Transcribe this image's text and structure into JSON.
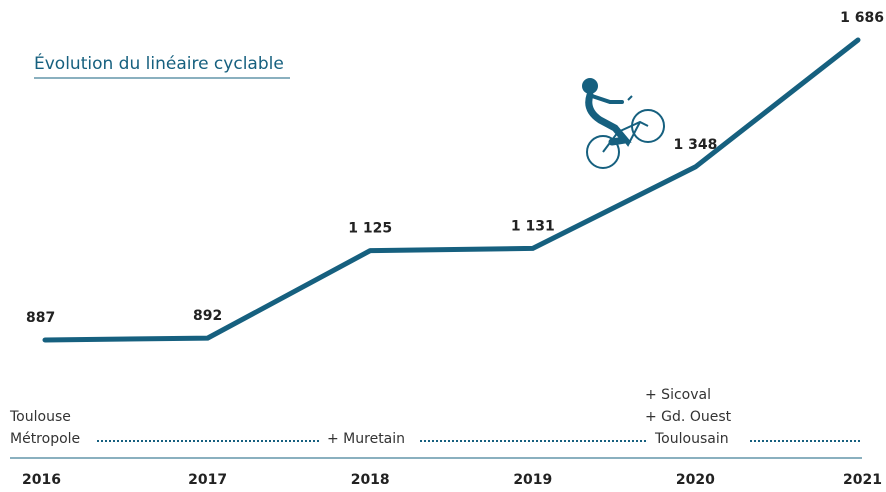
{
  "chart_data": {
    "type": "line",
    "title": "Évolution du linéaire cyclable",
    "categories": [
      "2016",
      "2017",
      "2018",
      "2019",
      "2020",
      "2021"
    ],
    "values": [
      887,
      892,
      1125,
      1131,
      1348,
      1686
    ],
    "value_labels": [
      "887",
      "892",
      "1 125",
      "1 131",
      "1 348",
      "1 686"
    ],
    "color": "#16607f",
    "annotations": [
      {
        "lines": [
          "Toulouse",
          "Métropole"
        ]
      },
      {
        "lines": [
          "+ Muretain"
        ]
      },
      {
        "lines": [
          "+ Sicoval",
          "+ Gd. Ouest",
          "Toulousain"
        ]
      }
    ]
  }
}
